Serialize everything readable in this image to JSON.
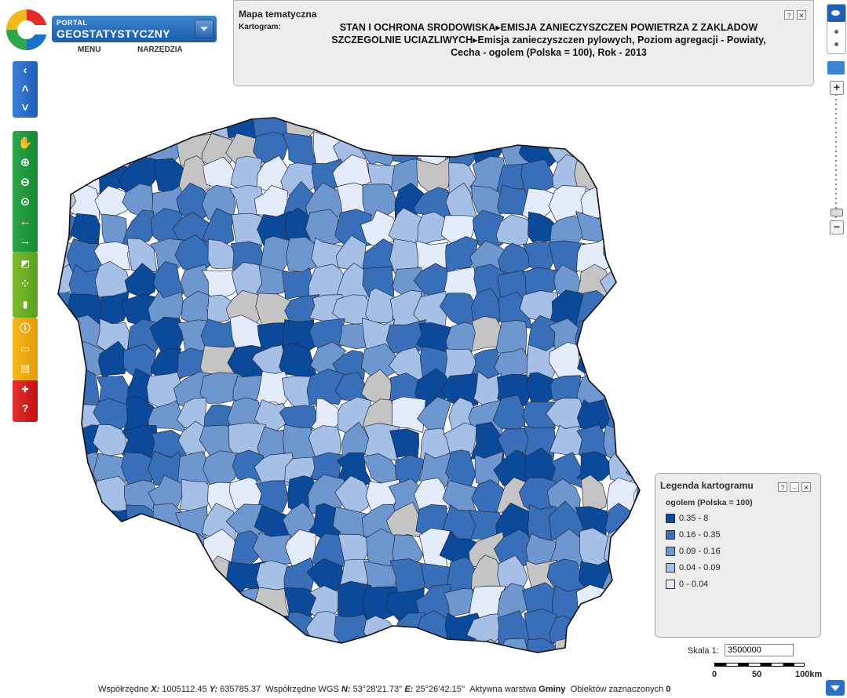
{
  "header": {
    "portal_small": "PORTAL",
    "portal_big": "GEOSTATYSTYCZNY",
    "menu": "MENU",
    "tools": "NARZĘDZIA"
  },
  "info": {
    "title": "Mapa tematyczna",
    "label": "Kartogram:",
    "line1": "STAN I OCHRONA SRODOWISKA▸EMISJA ZANIECZYSZCZEN POWIETRZA Z ZAKLADOW",
    "line2": "SZCZEGOLNIE UCIAZLIWYCH▸Emisja zanieczyszczen pylowych, Poziom agregacji - Powiaty,",
    "line3": "Cecha - ogolem (Polska = 100), Rok - 2013",
    "help": "?",
    "close": "✕"
  },
  "legend": {
    "title": "Legenda kartogramu",
    "subtitle": "ogolem (Polska = 100)",
    "classes": [
      {
        "label": "0.35 - 8",
        "color": "#0b4a9a"
      },
      {
        "label": "0.16 - 0.35",
        "color": "#386fb8"
      },
      {
        "label": "0.09 - 0.16",
        "color": "#6e97d0"
      },
      {
        "label": "0.04 - 0.09",
        "color": "#a6bfe6"
      },
      {
        "label": "0 - 0.04",
        "color": "#e4ebfa"
      }
    ],
    "nodata_color": "#c4c4c4",
    "help": "?",
    "min": "–",
    "close": "✕"
  },
  "scale": {
    "label": "Skala 1:",
    "value": "3500000",
    "ticks": [
      "0",
      "50",
      "100km"
    ]
  },
  "status": {
    "coord_label": "Współrzędne",
    "x_label": "X:",
    "x_value": "1005112.45",
    "y_label": "Y:",
    "y_value": "635785.37",
    "wgs_label": "Współrzędne WGS",
    "n_label": "N:",
    "n_value": "53°28'21.73''",
    "e_label": "E:",
    "e_value": "25°26'42.15''",
    "layer_label": "Aktywna warstwa",
    "layer_value": "Gminy",
    "selected_label": "Obiektów zaznaczonych",
    "selected_value": "0"
  },
  "icons": {
    "nav": [
      "back-arrow-icon",
      "up-chevron-icon",
      "down-chevron-icon"
    ],
    "tools": [
      "pan-hand-icon",
      "zoom-in-icon",
      "zoom-out-icon",
      "zoom-extent-icon",
      "previous-view-icon",
      "next-view-icon"
    ],
    "analysis": [
      "map-style-icon",
      "statistics-icon",
      "bar-chart-icon"
    ],
    "misc": [
      "info-icon",
      "select-rectangle-icon",
      "print-icon"
    ],
    "extra": [
      "uk-flag-icon",
      "help-icon"
    ]
  }
}
